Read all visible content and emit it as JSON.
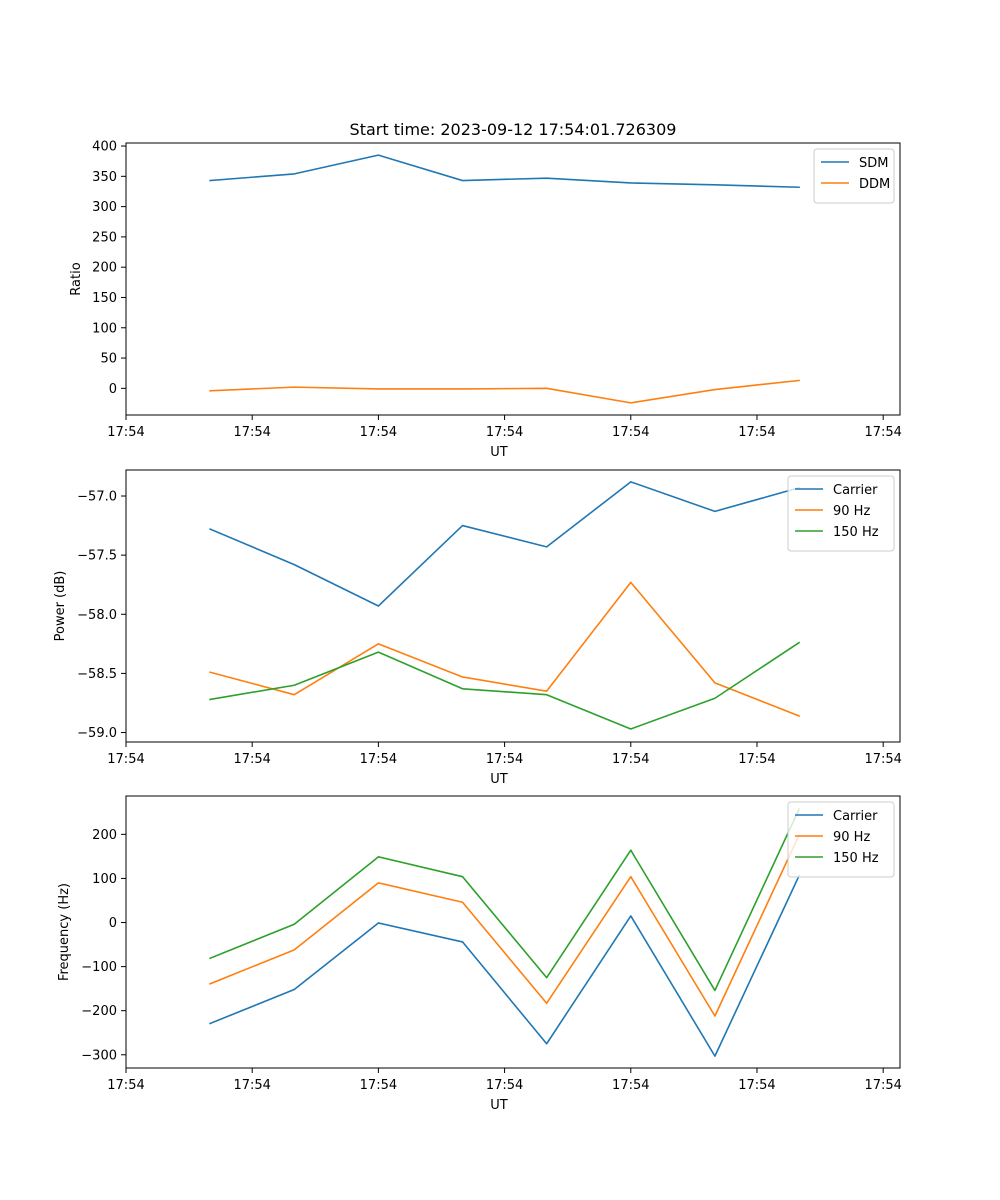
{
  "title": "Start time: 2023-09-12 17:54:01.726309",
  "chart_data": [
    {
      "type": "line",
      "title": "Start time: 2023-09-12 17:54:01.726309",
      "xlabel": "UT",
      "ylabel": "Ratio",
      "x": [
        0.5,
        1.0,
        1.5,
        2.0,
        2.5,
        3.0,
        3.5,
        4.0
      ],
      "xlim": [
        0.0,
        4.6
      ],
      "xticks": [
        0.0,
        0.75,
        1.5,
        2.25,
        3.0,
        3.75,
        4.5
      ],
      "xtick_labels": [
        "17:54",
        "17:54",
        "17:54",
        "17:54",
        "17:54",
        "17:54",
        "17:54"
      ],
      "ylim": [
        -44,
        405
      ],
      "yticks": [
        0,
        50,
        100,
        150,
        200,
        250,
        300,
        350,
        400
      ],
      "ytick_labels": [
        "0",
        "50",
        "100",
        "150",
        "200",
        "250",
        "300",
        "350",
        "400"
      ],
      "legend": "top-right",
      "series": [
        {
          "name": "SDM",
          "color": "#1f77b4",
          "values": [
            343,
            354,
            385,
            343,
            347,
            339,
            336,
            332
          ]
        },
        {
          "name": "DDM",
          "color": "#ff7f0e",
          "values": [
            -4,
            2,
            -1,
            -1,
            0,
            -24,
            -2,
            13
          ]
        }
      ]
    },
    {
      "type": "line",
      "title": "",
      "xlabel": "UT",
      "ylabel": "Power (dB)",
      "x": [
        0.5,
        1.0,
        1.5,
        2.0,
        2.5,
        3.0,
        3.5,
        4.0
      ],
      "xlim": [
        0.0,
        4.6
      ],
      "xticks": [
        0.0,
        0.75,
        1.5,
        2.25,
        3.0,
        3.75,
        4.5
      ],
      "xtick_labels": [
        "17:54",
        "17:54",
        "17:54",
        "17:54",
        "17:54",
        "17:54",
        "17:54"
      ],
      "ylim": [
        -59.08,
        -56.78
      ],
      "yticks": [
        -59.0,
        -58.5,
        -58.0,
        -57.5,
        -57.0
      ],
      "ytick_labels": [
        "−59.0",
        "−58.5",
        "−58.0",
        "−57.5",
        "−57.0"
      ],
      "legend": "top-right",
      "series": [
        {
          "name": "Carrier",
          "color": "#1f77b4",
          "values": [
            -57.28,
            -57.58,
            -57.93,
            -57.25,
            -57.43,
            -56.88,
            -57.13,
            -56.93
          ]
        },
        {
          "name": "90 Hz",
          "color": "#ff7f0e",
          "values": [
            -58.49,
            -58.68,
            -58.25,
            -58.53,
            -58.65,
            -57.73,
            -58.58,
            -58.86
          ]
        },
        {
          "name": "150 Hz",
          "color": "#2ca02c",
          "values": [
            -58.72,
            -58.6,
            -58.32,
            -58.63,
            -58.68,
            -58.97,
            -58.71,
            -58.24
          ]
        }
      ]
    },
    {
      "type": "line",
      "title": "",
      "xlabel": "UT",
      "ylabel": "Frequency (Hz)",
      "x": [
        0.5,
        1.0,
        1.5,
        2.0,
        2.5,
        3.0,
        3.5,
        4.0
      ],
      "xlim": [
        0.0,
        4.6
      ],
      "xticks": [
        0.0,
        0.75,
        1.5,
        2.25,
        3.0,
        3.75,
        4.5
      ],
      "xtick_labels": [
        "17:54",
        "17:54",
        "17:54",
        "17:54",
        "17:54",
        "17:54",
        "17:54"
      ],
      "ylim": [
        -330,
        287
      ],
      "yticks": [
        -300,
        -200,
        -100,
        0,
        100,
        200
      ],
      "ytick_labels": [
        "−300",
        "−200",
        "−100",
        "0",
        "100",
        "200"
      ],
      "legend": "top-right",
      "series": [
        {
          "name": "Carrier",
          "color": "#1f77b4",
          "values": [
            -229,
            -152,
            -1,
            -44,
            -275,
            15,
            -303,
            106
          ]
        },
        {
          "name": "90 Hz",
          "color": "#ff7f0e",
          "values": [
            -139,
            -62,
            90,
            46,
            -183,
            104,
            -212,
            198
          ]
        },
        {
          "name": "150 Hz",
          "color": "#2ca02c",
          "values": [
            -81,
            -4,
            149,
            104,
            -125,
            164,
            -154,
            257
          ]
        }
      ]
    }
  ]
}
